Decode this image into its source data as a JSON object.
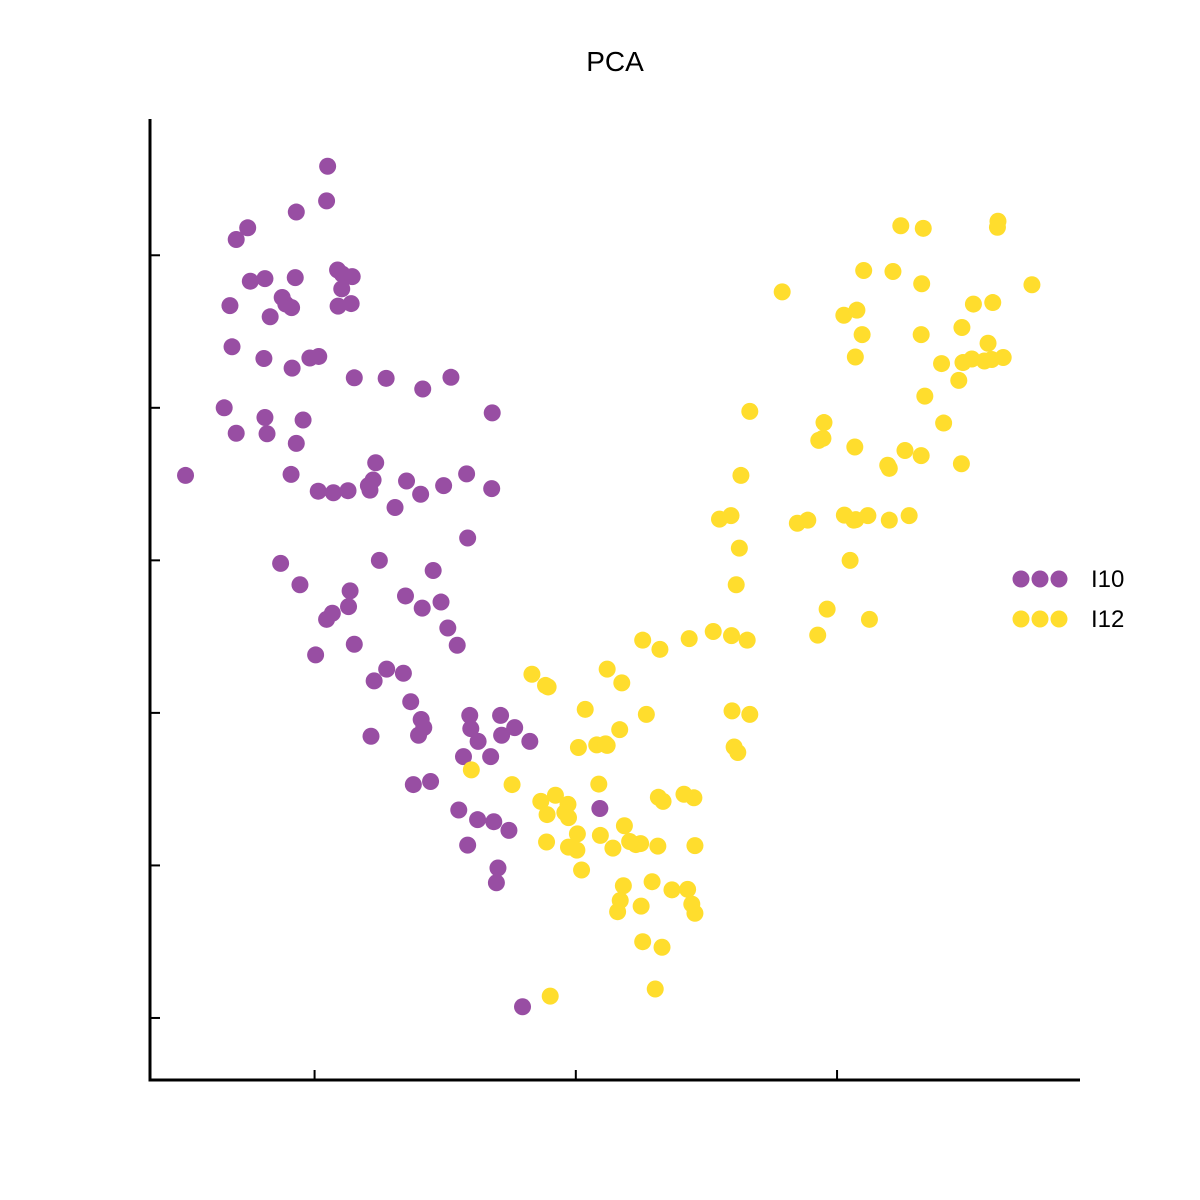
{
  "chart_data": {
    "type": "scatter",
    "title": "PCA",
    "xlabel": "",
    "ylabel": "",
    "xlim": [
      -3.15,
      14.65
    ],
    "ylim": [
      -1.22,
      17.68
    ],
    "x_ticks": [
      0,
      5,
      10
    ],
    "y_ticks": [
      0,
      3,
      6,
      9,
      12,
      15
    ],
    "grid": false,
    "legend": "right",
    "series": [
      {
        "name": "I10",
        "color": "#984ea3",
        "points": [
          [
            0.25,
            16.75
          ],
          [
            -0.35,
            15.85
          ],
          [
            0.23,
            16.07
          ],
          [
            -1.5,
            15.31
          ],
          [
            -1.28,
            15.54
          ],
          [
            -1.23,
            14.49
          ],
          [
            -0.37,
            14.56
          ],
          [
            -0.95,
            14.54
          ],
          [
            -1.62,
            14.01
          ],
          [
            -0.62,
            14.17
          ],
          [
            -0.55,
            14.04
          ],
          [
            -0.44,
            13.97
          ],
          [
            -0.85,
            13.79
          ],
          [
            0.44,
            14.71
          ],
          [
            0.53,
            14.63
          ],
          [
            0.72,
            14.58
          ],
          [
            0.52,
            14.34
          ],
          [
            0.45,
            14.0
          ],
          [
            0.7,
            14.05
          ],
          [
            -1.58,
            13.2
          ],
          [
            -0.97,
            12.97
          ],
          [
            -0.43,
            12.78
          ],
          [
            -0.09,
            12.98
          ],
          [
            0.08,
            13.01
          ],
          [
            0.76,
            12.59
          ],
          [
            1.37,
            12.58
          ],
          [
            2.07,
            12.37
          ],
          [
            2.61,
            12.6
          ],
          [
            -1.73,
            12.0
          ],
          [
            -0.91,
            11.49
          ],
          [
            -0.95,
            11.81
          ],
          [
            -0.22,
            11.76
          ],
          [
            -1.5,
            11.5
          ],
          [
            -0.35,
            11.3
          ],
          [
            -2.47,
            10.67
          ],
          [
            -0.45,
            10.69
          ],
          [
            0.07,
            10.36
          ],
          [
            0.36,
            10.33
          ],
          [
            0.64,
            10.37
          ],
          [
            1.17,
            10.92
          ],
          [
            1.12,
            10.58
          ],
          [
            1.03,
            10.47
          ],
          [
            1.06,
            10.38
          ],
          [
            1.54,
            10.04
          ],
          [
            1.76,
            10.56
          ],
          [
            2.03,
            10.3
          ],
          [
            2.47,
            10.47
          ],
          [
            2.91,
            10.7
          ],
          [
            3.4,
            11.9
          ],
          [
            3.39,
            10.41
          ],
          [
            2.93,
            9.44
          ],
          [
            -0.65,
            8.94
          ],
          [
            -0.28,
            8.52
          ],
          [
            1.24,
            9.0
          ],
          [
            0.68,
            8.4
          ],
          [
            1.74,
            8.3
          ],
          [
            2.06,
            8.06
          ],
          [
            2.27,
            8.8
          ],
          [
            2.42,
            8.18
          ],
          [
            0.65,
            8.09
          ],
          [
            0.23,
            7.84
          ],
          [
            0.34,
            7.96
          ],
          [
            0.02,
            7.14
          ],
          [
            0.76,
            7.35
          ],
          [
            2.55,
            7.67
          ],
          [
            2.73,
            7.33
          ],
          [
            1.38,
            6.86
          ],
          [
            1.14,
            6.63
          ],
          [
            1.7,
            6.78
          ],
          [
            1.84,
            6.22
          ],
          [
            2.04,
            5.87
          ],
          [
            2.97,
            5.95
          ],
          [
            3.56,
            5.95
          ],
          [
            2.99,
            5.69
          ],
          [
            3.13,
            5.44
          ],
          [
            3.58,
            5.56
          ],
          [
            3.83,
            5.71
          ],
          [
            4.12,
            5.44
          ],
          [
            1.08,
            5.54
          ],
          [
            1.99,
            5.56
          ],
          [
            2.09,
            5.71
          ],
          [
            2.85,
            5.14
          ],
          [
            3.37,
            5.14
          ],
          [
            1.89,
            4.59
          ],
          [
            2.22,
            4.65
          ],
          [
            2.76,
            4.09
          ],
          [
            3.12,
            3.9
          ],
          [
            3.43,
            3.86
          ],
          [
            3.72,
            3.69
          ],
          [
            2.93,
            3.4
          ],
          [
            3.51,
            2.95
          ],
          [
            3.48,
            2.66
          ],
          [
            3.98,
            0.22
          ],
          [
            5.46,
            4.12
          ]
        ]
      },
      {
        "name": "I12",
        "color": "#ffdd2d",
        "points": [
          [
            11.22,
            15.58
          ],
          [
            11.65,
            15.53
          ],
          [
            13.08,
            15.67
          ],
          [
            13.07,
            15.55
          ],
          [
            10.51,
            14.7
          ],
          [
            11.07,
            14.68
          ],
          [
            11.62,
            14.44
          ],
          [
            12.98,
            14.07
          ],
          [
            12.61,
            14.04
          ],
          [
            13.73,
            14.42
          ],
          [
            8.95,
            14.28
          ],
          [
            10.13,
            13.82
          ],
          [
            10.38,
            13.92
          ],
          [
            10.48,
            13.44
          ],
          [
            11.61,
            13.44
          ],
          [
            12.39,
            13.58
          ],
          [
            12.89,
            13.27
          ],
          [
            10.35,
            13.0
          ],
          [
            12.0,
            12.87
          ],
          [
            12.41,
            12.89
          ],
          [
            12.58,
            12.96
          ],
          [
            12.82,
            12.92
          ],
          [
            12.96,
            12.95
          ],
          [
            13.18,
            12.99
          ],
          [
            12.33,
            12.54
          ],
          [
            11.68,
            12.23
          ],
          [
            8.33,
            11.93
          ],
          [
            9.75,
            11.71
          ],
          [
            9.65,
            11.36
          ],
          [
            9.73,
            11.4
          ],
          [
            11.3,
            11.16
          ],
          [
            11.61,
            11.06
          ],
          [
            12.04,
            11.7
          ],
          [
            12.38,
            10.9
          ],
          [
            10.34,
            11.23
          ],
          [
            11.0,
            10.81
          ],
          [
            10.97,
            10.87
          ],
          [
            8.16,
            10.67
          ],
          [
            7.75,
            9.81
          ],
          [
            7.97,
            9.88
          ],
          [
            9.24,
            9.73
          ],
          [
            9.44,
            9.79
          ],
          [
            10.14,
            9.89
          ],
          [
            10.36,
            9.8
          ],
          [
            10.59,
            9.88
          ],
          [
            10.32,
            9.79
          ],
          [
            11.0,
            9.79
          ],
          [
            11.38,
            9.88
          ],
          [
            8.13,
            9.24
          ],
          [
            8.07,
            8.52
          ],
          [
            10.25,
            9.0
          ],
          [
            9.81,
            8.04
          ],
          [
            10.62,
            7.84
          ],
          [
            9.63,
            7.53
          ],
          [
            7.63,
            7.6
          ],
          [
            7.98,
            7.52
          ],
          [
            7.17,
            7.46
          ],
          [
            8.28,
            7.43
          ],
          [
            6.28,
            7.43
          ],
          [
            6.61,
            7.25
          ],
          [
            5.6,
            6.86
          ],
          [
            5.88,
            6.59
          ],
          [
            7.99,
            6.04
          ],
          [
            8.33,
            5.97
          ],
          [
            8.1,
            5.22
          ],
          [
            8.03,
            5.33
          ],
          [
            4.47,
            6.51
          ],
          [
            5.18,
            6.07
          ],
          [
            4.16,
            6.76
          ],
          [
            4.42,
            6.54
          ],
          [
            6.35,
            5.97
          ],
          [
            5.84,
            5.67
          ],
          [
            5.6,
            5.36
          ],
          [
            5.4,
            5.37
          ],
          [
            5.57,
            5.39
          ],
          [
            3.0,
            4.88
          ],
          [
            3.78,
            4.59
          ],
          [
            5.05,
            5.32
          ],
          [
            5.44,
            4.6
          ],
          [
            4.85,
            4.2
          ],
          [
            4.61,
            4.38
          ],
          [
            6.58,
            4.34
          ],
          [
            4.33,
            4.26
          ],
          [
            4.45,
            4.0
          ],
          [
            4.79,
            4.04
          ],
          [
            4.86,
            3.94
          ],
          [
            7.26,
            4.33
          ],
          [
            7.07,
            4.4
          ],
          [
            6.67,
            4.26
          ],
          [
            5.47,
            3.59
          ],
          [
            4.44,
            3.46
          ],
          [
            5.03,
            3.62
          ],
          [
            5.02,
            3.3
          ],
          [
            5.93,
            3.78
          ],
          [
            6.15,
            3.41
          ],
          [
            6.24,
            3.43
          ],
          [
            6.03,
            3.47
          ],
          [
            6.57,
            3.38
          ],
          [
            5.71,
            3.34
          ],
          [
            4.86,
            3.36
          ],
          [
            5.11,
            2.91
          ],
          [
            5.91,
            2.6
          ],
          [
            6.25,
            2.2
          ],
          [
            6.46,
            2.68
          ],
          [
            6.84,
            2.52
          ],
          [
            7.14,
            2.53
          ],
          [
            7.28,
            2.06
          ],
          [
            7.28,
            3.39
          ],
          [
            7.22,
            2.24
          ],
          [
            5.8,
            2.09
          ],
          [
            5.85,
            2.31
          ],
          [
            6.28,
            1.5
          ],
          [
            6.65,
            1.39
          ],
          [
            4.51,
            0.43
          ],
          [
            6.52,
            0.57
          ]
        ]
      }
    ]
  }
}
